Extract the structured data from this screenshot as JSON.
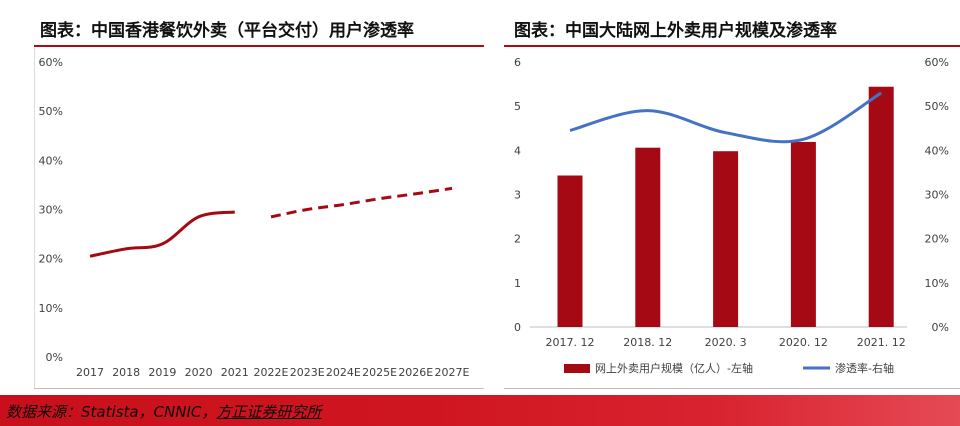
{
  "left": {
    "title": "图表：中国香港餐饮外卖（平台交付）用户渗透率"
  },
  "right": {
    "title": "图表：中国大陆网上外卖用户规模及渗透率"
  },
  "colors": {
    "accent": "#a50a14",
    "line_blue": "#4472c4",
    "axis": "#404040"
  },
  "chart_data": [
    {
      "type": "line",
      "title": "图表：中国香港餐饮外卖（平台交付）用户渗透率",
      "categories": [
        "2017",
        "2018",
        "2019",
        "2020",
        "2021",
        "2022E",
        "2023E",
        "2024E",
        "2025E",
        "2026E",
        "2027E"
      ],
      "series": [
        {
          "values": [
            20.5,
            22.0,
            23.0,
            28.5,
            29.5,
            null,
            null,
            null,
            null,
            null,
            null
          ],
          "style": "solid",
          "color": "#a50a14"
        },
        {
          "values": [
            null,
            null,
            null,
            null,
            null,
            28.5,
            30.0,
            31.0,
            32.2,
            33.2,
            34.3
          ],
          "style": "dashed",
          "color": "#a50a14"
        }
      ],
      "ylim": [
        0,
        60
      ],
      "yticks": [
        "0%",
        "10%",
        "20%",
        "30%",
        "40%",
        "50%",
        "60%"
      ],
      "grid": false,
      "legend": "none"
    },
    {
      "type": "bar",
      "title": "图表：中国大陆网上外卖用户规模及渗透率",
      "categories": [
        "2017. 12",
        "2018. 12",
        "2020. 3",
        "2020. 12",
        "2021. 12"
      ],
      "series": [
        {
          "name": "网上外卖用户规模（亿人）-左轴",
          "type": "bar",
          "axis": "left",
          "values": [
            3.43,
            4.06,
            3.98,
            4.19,
            5.44
          ],
          "color": "#a50a14"
        },
        {
          "name": "渗透率-右轴",
          "type": "line",
          "axis": "right",
          "values": [
            44.5,
            49.0,
            44.0,
            42.5,
            53.0
          ],
          "color": "#4472c4"
        }
      ],
      "ylim_left": [
        0,
        6
      ],
      "yticks_left": [
        "0",
        "1",
        "2",
        "3",
        "4",
        "5",
        "6"
      ],
      "ylim_right": [
        0,
        60
      ],
      "yticks_right": [
        "0%",
        "10%",
        "20%",
        "30%",
        "40%",
        "50%",
        "60%"
      ],
      "grid": false,
      "legend": "bottom"
    }
  ],
  "footer": {
    "source_prefix": "数据来源：Statista，CNNIC，",
    "source_firm": "方正证券研究所"
  }
}
